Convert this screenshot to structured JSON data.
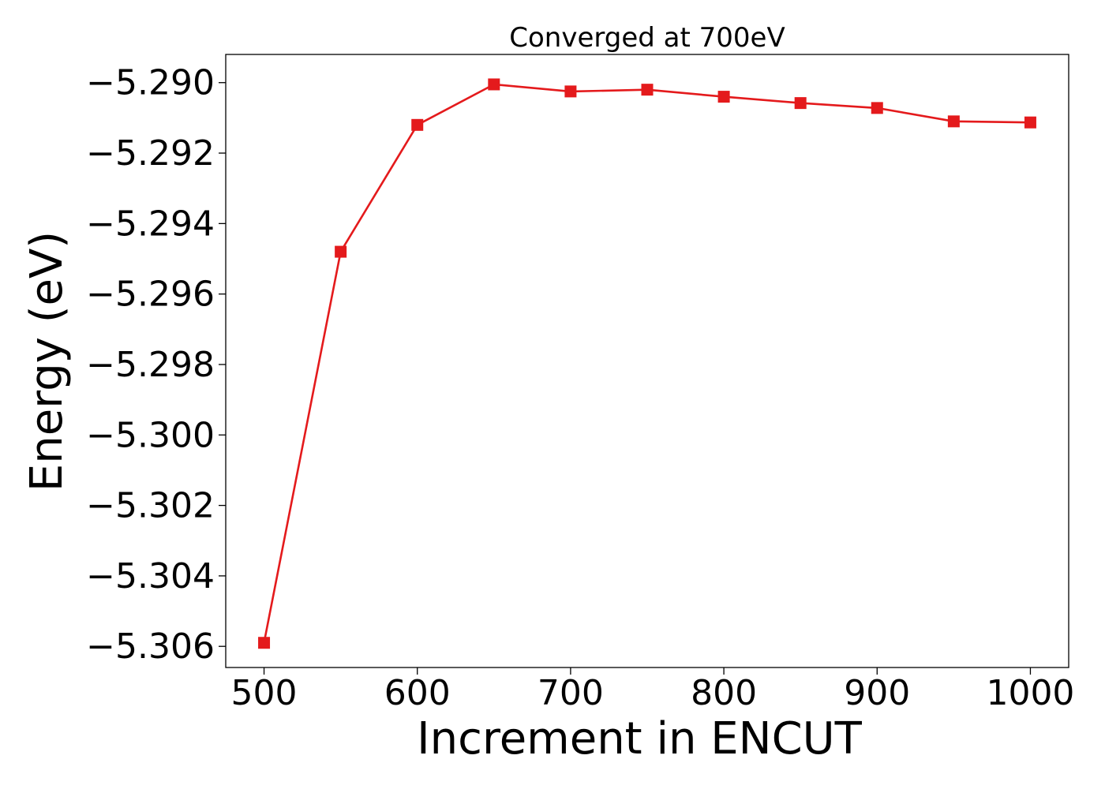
{
  "chart_data": {
    "type": "line",
    "title": "Converged at 700eV",
    "xlabel": "Increment in ENCUT",
    "ylabel": "Energy (eV)",
    "xlim": [
      475,
      1025
    ],
    "ylim": [
      -5.3066,
      -5.2892
    ],
    "grid": false,
    "xticks": [
      500,
      600,
      700,
      800,
      900,
      1000
    ],
    "xtick_labels": [
      "500",
      "600",
      "700",
      "800",
      "900",
      "1000"
    ],
    "yticks": [
      -5.29,
      -5.292,
      -5.294,
      -5.296,
      -5.298,
      -5.3,
      -5.302,
      -5.304,
      -5.306
    ],
    "ytick_labels": [
      "−5.290",
      "−5.292",
      "−5.294",
      "−5.296",
      "−5.298",
      "−5.300",
      "−5.302",
      "−5.304",
      "−5.306"
    ],
    "series": [
      {
        "color": "#e41a1c",
        "marker": "square",
        "x": [
          500,
          550,
          600,
          650,
          700,
          750,
          800,
          850,
          900,
          950,
          1000
        ],
        "y": [
          -5.3059,
          -5.2948,
          -5.2912,
          -5.29005,
          -5.29025,
          -5.2902,
          -5.2904,
          -5.29058,
          -5.29072,
          -5.2911,
          -5.29113
        ]
      }
    ]
  }
}
